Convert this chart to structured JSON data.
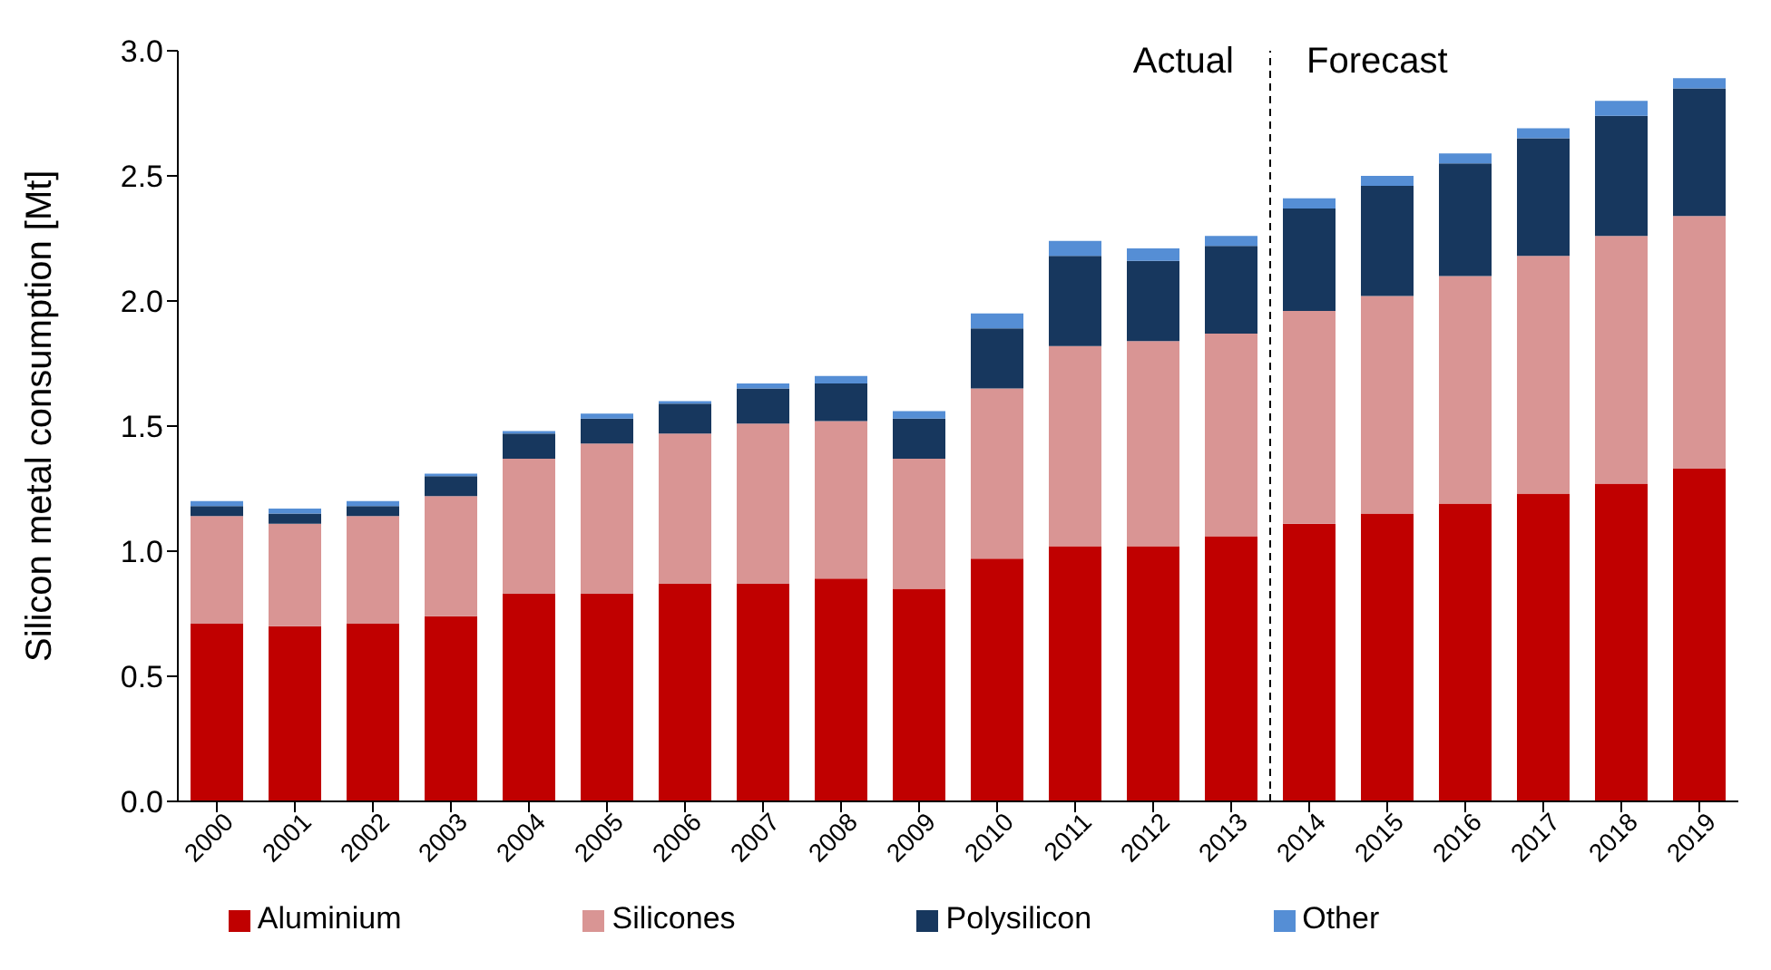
{
  "chart_data": {
    "type": "bar",
    "stacked": true,
    "ylabel": "Silicon metal consumption [Mt]",
    "x": [
      2000,
      2001,
      2002,
      2003,
      2004,
      2005,
      2006,
      2007,
      2008,
      2009,
      2010,
      2011,
      2012,
      2013,
      2014,
      2015,
      2016,
      2017,
      2018,
      2019
    ],
    "xlim": [
      1999.5,
      2019.5
    ],
    "xticks": [
      2000,
      2001,
      2002,
      2003,
      2004,
      2005,
      2006,
      2007,
      2008,
      2009,
      2010,
      2011,
      2012,
      2013,
      2014,
      2015,
      2016,
      2017,
      2018,
      2019
    ],
    "ylim": [
      0,
      3
    ],
    "yticks": [
      {
        "value": 0,
        "label": "0.0"
      },
      {
        "value": 0.5,
        "label": "0.5"
      },
      {
        "value": 1,
        "label": "1.0"
      },
      {
        "value": 1.5,
        "label": "1.5"
      },
      {
        "value": 2,
        "label": "2.0"
      },
      {
        "value": 2.5,
        "label": "2.5"
      },
      {
        "value": 3,
        "label": "3.0"
      }
    ],
    "series": [
      {
        "name": "Aluminium",
        "color": "#c00000",
        "values": [
          0.71,
          0.7,
          0.71,
          0.74,
          0.83,
          0.83,
          0.87,
          0.87,
          0.89,
          0.85,
          0.97,
          1.02,
          1.02,
          1.06,
          1.11,
          1.15,
          1.19,
          1.23,
          1.27,
          1.33
        ]
      },
      {
        "name": "Silicones",
        "color": "#d99594",
        "values": [
          0.43,
          0.41,
          0.43,
          0.48,
          0.54,
          0.6,
          0.6,
          0.64,
          0.63,
          0.52,
          0.68,
          0.8,
          0.82,
          0.81,
          0.85,
          0.87,
          0.91,
          0.95,
          0.99,
          1.01
        ]
      },
      {
        "name": "Polysilicon",
        "color": "#17375e",
        "values": [
          0.04,
          0.04,
          0.04,
          0.08,
          0.1,
          0.1,
          0.12,
          0.14,
          0.15,
          0.16,
          0.24,
          0.36,
          0.32,
          0.35,
          0.41,
          0.44,
          0.45,
          0.47,
          0.48,
          0.51
        ]
      },
      {
        "name": "Other",
        "color": "#558ed5",
        "values": [
          0.02,
          0.02,
          0.02,
          0.01,
          0.01,
          0.02,
          0.01,
          0.02,
          0.03,
          0.03,
          0.06,
          0.06,
          0.05,
          0.04,
          0.04,
          0.04,
          0.04,
          0.04,
          0.06,
          0.04
        ]
      }
    ],
    "ref_lines": [
      {
        "axis": "x",
        "value": 2013.5,
        "line_style": "dashed",
        "color": "#000000"
      }
    ],
    "annotations": [
      "Actual",
      "Forecast"
    ],
    "legend": "bottom",
    "grid": false
  }
}
